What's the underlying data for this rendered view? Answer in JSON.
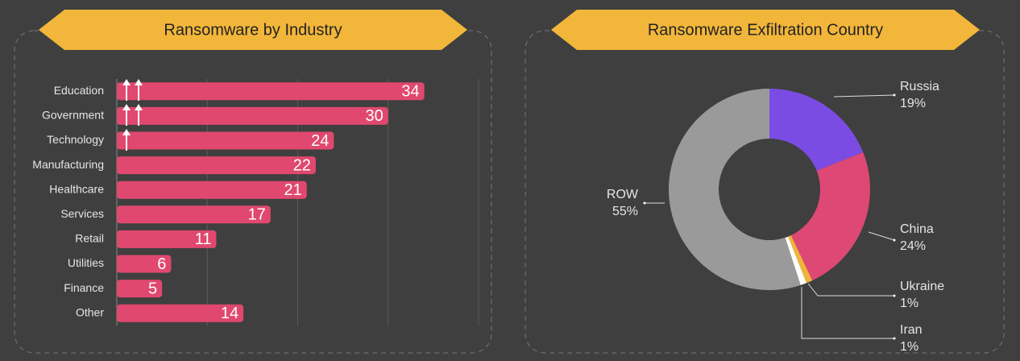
{
  "chart_data": [
    {
      "type": "bar",
      "title": "Ransomware by Industry",
      "categories": [
        "Education",
        "Government",
        "Technology",
        "Manufacturing",
        "Healthcare",
        "Services",
        "Retail",
        "Utilities",
        "Finance",
        "Other"
      ],
      "values": [
        34,
        30,
        24,
        22,
        21,
        17,
        11,
        6,
        5,
        14
      ],
      "color": "#e0486f",
      "xlim": [
        0,
        40
      ],
      "xticks": [
        0,
        10,
        20,
        30,
        40
      ],
      "grid": true
    },
    {
      "type": "donut",
      "title": "Ransomware Exfiltration Country",
      "categories": [
        "Russia",
        "China",
        "Ukraine",
        "Iran",
        "ROW"
      ],
      "values": [
        19,
        24,
        1,
        1,
        55
      ],
      "value_labels": [
        "19%",
        "24%",
        "1%",
        "1%",
        "55%"
      ],
      "colors": [
        "#7a4ce3",
        "#de4874",
        "#f0b43a",
        "#ffffff",
        "#9a9a9a"
      ]
    }
  ]
}
